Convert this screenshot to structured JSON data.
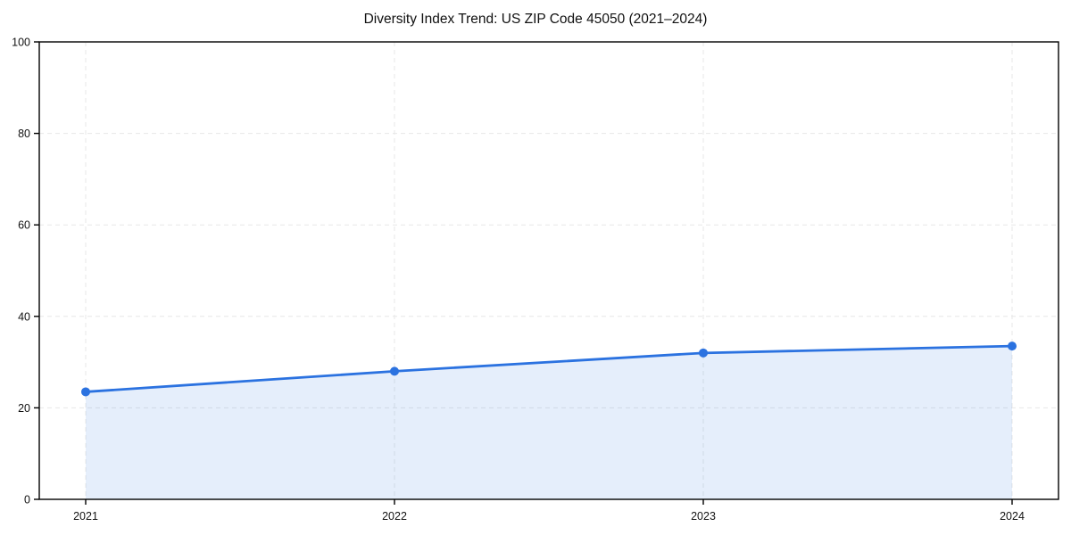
{
  "chart_data": {
    "type": "area",
    "title": "Diversity Index Trend: US ZIP Code 45050 (2021–2024)",
    "categories": [
      "2021",
      "2022",
      "2023",
      "2024"
    ],
    "series": [
      {
        "name": "Diversity Index",
        "values": [
          23.5,
          28.0,
          32.0,
          33.5
        ]
      }
    ],
    "xlabel": "",
    "ylabel": "",
    "ylim": [
      0,
      100
    ],
    "yticks": [
      0,
      20,
      40,
      60,
      80,
      100
    ],
    "grid": true,
    "grid_style": "dashed",
    "legend": "none",
    "marker": "circle",
    "colors": {
      "line": "#2b72e0",
      "marker": "#2b72e0",
      "fill": "rgba(43, 114, 224, 0.12)",
      "grid": "#e7e7e7",
      "spine": "#000000",
      "tick_label": "#111111",
      "background": "#ffffff"
    }
  }
}
